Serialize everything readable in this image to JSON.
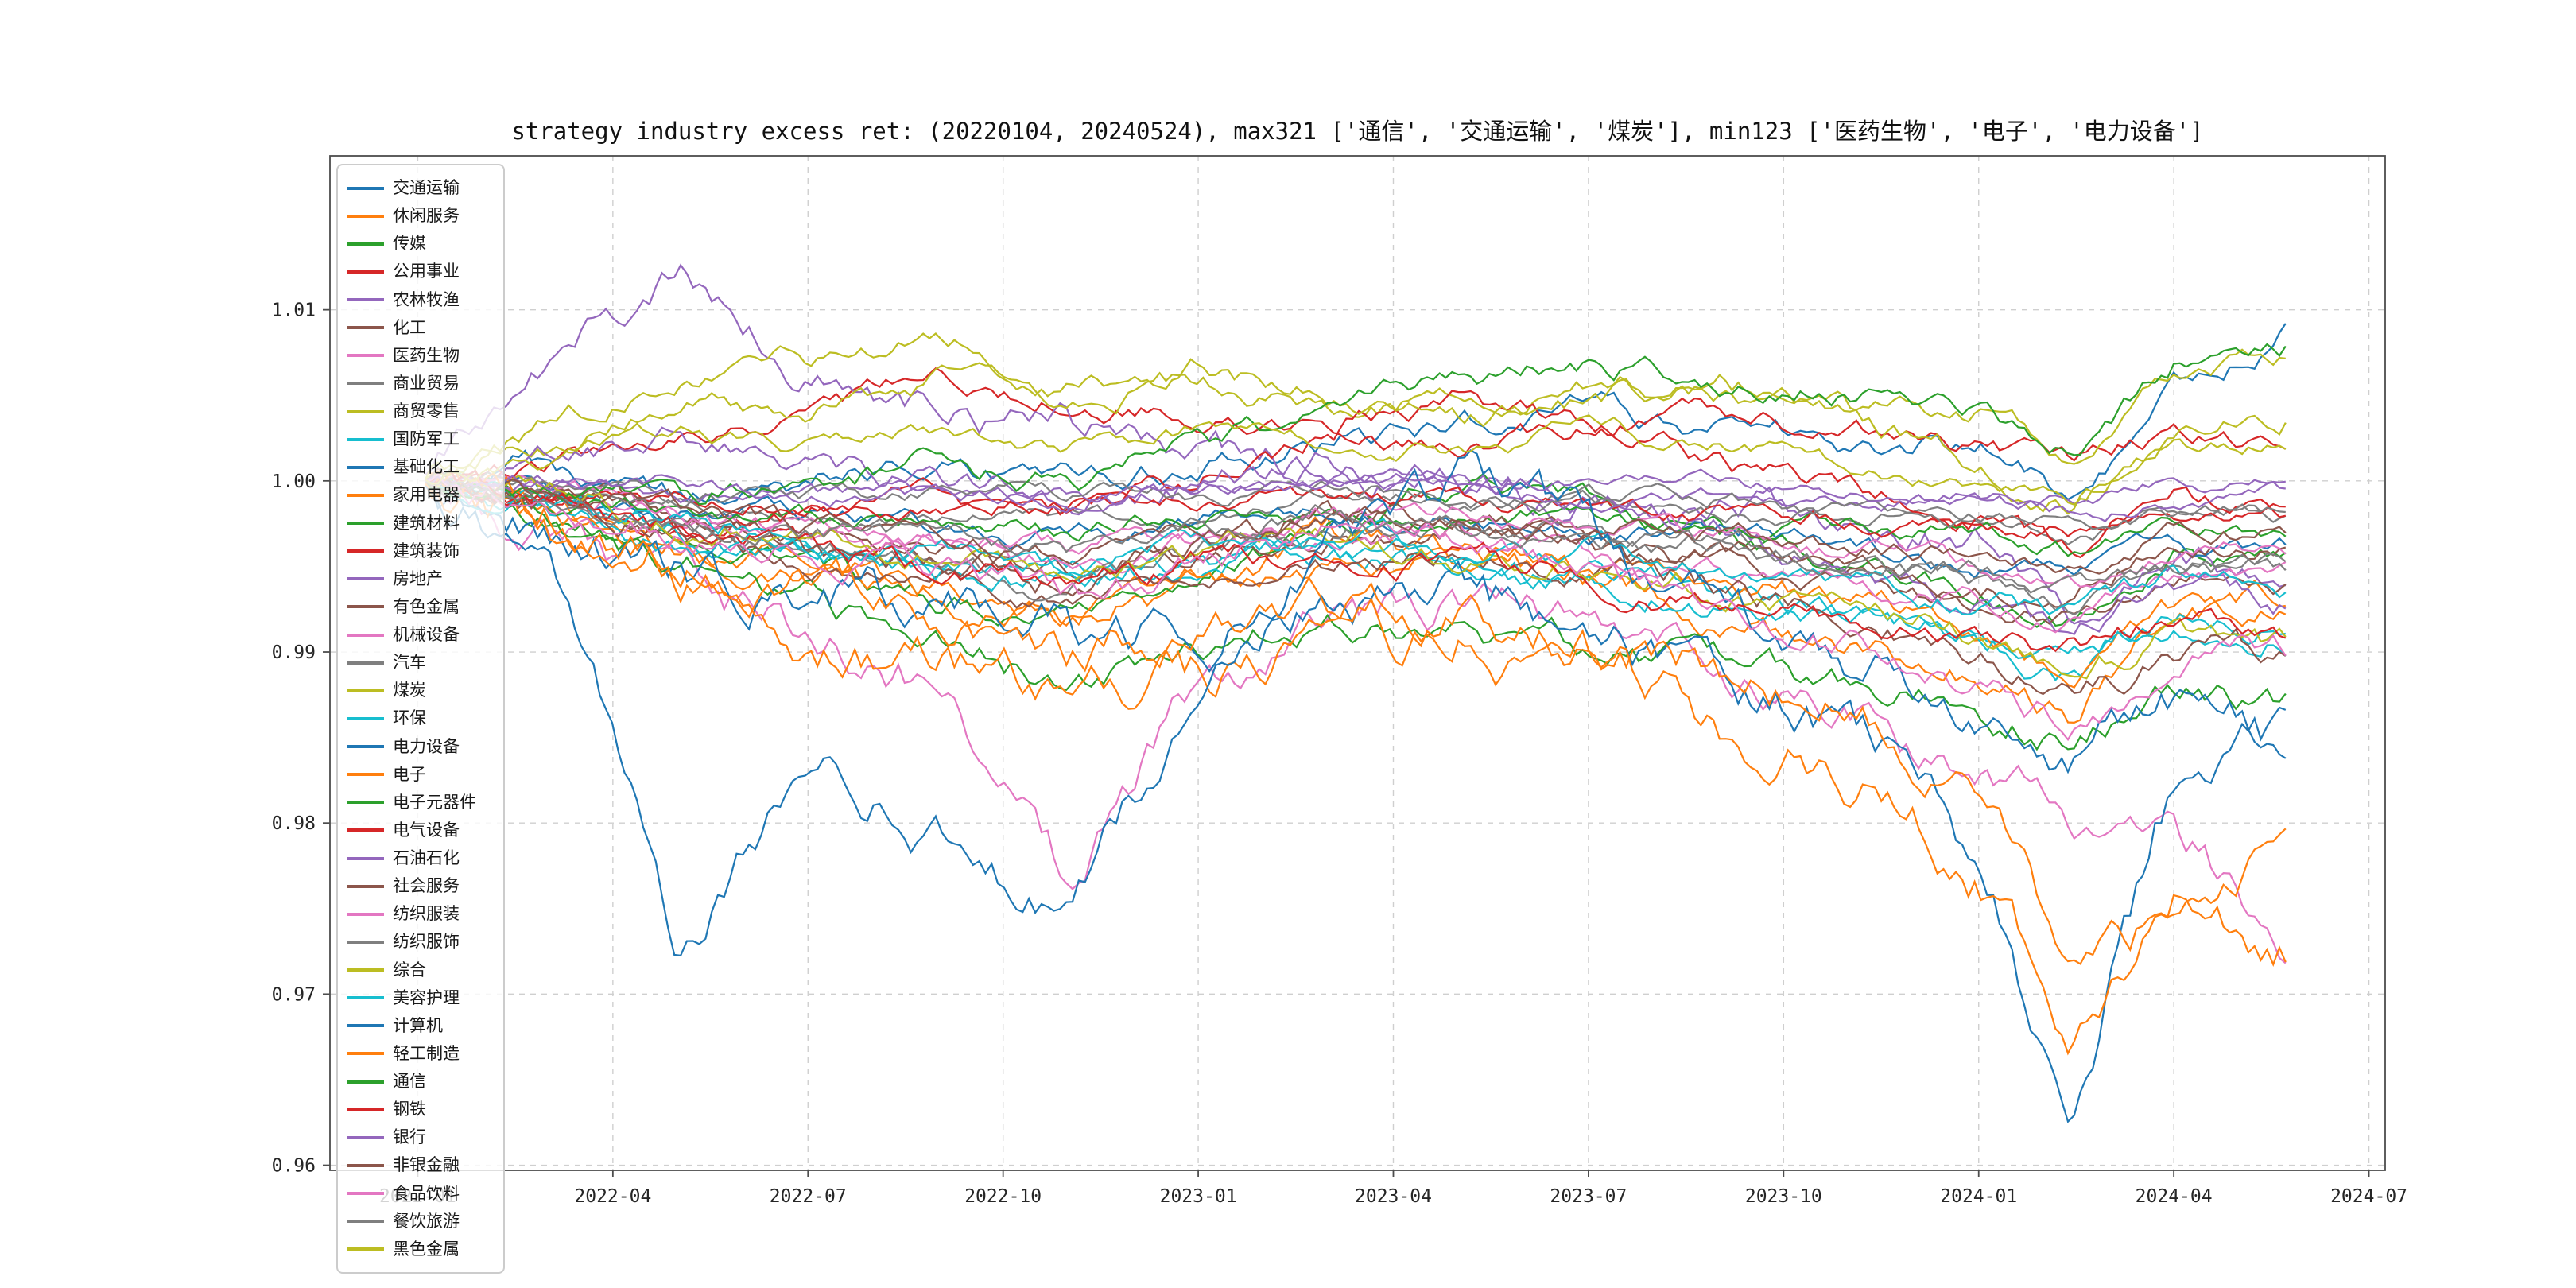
{
  "figure": {
    "title": "strategy industry excess ret: (20220104, 20240524), max321 ['通信', '交通运输', '煤炭'], min123 ['医药生物', '电子', '电力设备']",
    "background": "#ffffff"
  },
  "palette": [
    "#1f77b4",
    "#ff7f0e",
    "#2ca02c",
    "#d62728",
    "#9467bd",
    "#8c564b",
    "#e377c2",
    "#7f7f7f",
    "#bcbd22",
    "#17becf"
  ],
  "axes": {
    "xlim_months": [
      -1.35,
      30.25
    ],
    "ylim": [
      0.9597,
      1.019
    ],
    "x_ticks": [
      {
        "m": 0,
        "label": "2022-01"
      },
      {
        "m": 3,
        "label": "2022-04"
      },
      {
        "m": 6,
        "label": "2022-07"
      },
      {
        "m": 9,
        "label": "2022-10"
      },
      {
        "m": 12,
        "label": "2023-01"
      },
      {
        "m": 15,
        "label": "2023-04"
      },
      {
        "m": 18,
        "label": "2023-07"
      },
      {
        "m": 21,
        "label": "2023-10"
      },
      {
        "m": 24,
        "label": "2024-01"
      },
      {
        "m": 27,
        "label": "2024-04"
      },
      {
        "m": 30,
        "label": "2024-07"
      }
    ],
    "y_ticks": [
      {
        "v": 0.96,
        "label": "0.96"
      },
      {
        "v": 0.97,
        "label": "0.97"
      },
      {
        "v": 0.98,
        "label": "0.98"
      },
      {
        "v": 0.99,
        "label": "0.99"
      },
      {
        "v": 1.0,
        "label": "1.00"
      },
      {
        "v": 1.01,
        "label": "1.01"
      }
    ],
    "grid": {
      "style": "dashed",
      "color": "#cfcfcf"
    }
  },
  "chart_data": {
    "type": "line",
    "title": "strategy industry excess ret: (20220104, 20240524), max321 ['通信', '交通运输', '煤炭'], min123 ['医药生物', '电子', '电力设备']",
    "date_range": [
      "2022-01-04",
      "2024-05-24"
    ],
    "legend_position": "upper left",
    "xlabel": "",
    "ylabel": "",
    "x_anchor_months": [
      0,
      2,
      4,
      6,
      8,
      10,
      12,
      14,
      16,
      18,
      20,
      22,
      24,
      25.4,
      27,
      28.7
    ],
    "max321": [
      "通信",
      "交通运输",
      "煤炭"
    ],
    "min123": [
      "医药生物",
      "电子",
      "电力设备"
    ],
    "series": [
      {
        "name": "交通运输",
        "values": [
          1.0,
          1.001,
          0.999,
          1.0,
          1.001,
          1.0,
          1.001,
          1.002,
          1.003,
          1.004,
          1.003,
          1.002,
          1.002,
          0.999,
          1.005,
          1.009
        ]
      },
      {
        "name": "休闲服务",
        "values": [
          1.0,
          0.998,
          0.996,
          0.995,
          0.994,
          0.992,
          0.994,
          0.996,
          0.995,
          0.994,
          0.992,
          0.99,
          0.989,
          0.986,
          0.992,
          0.993
        ]
      },
      {
        "name": "传媒",
        "values": [
          1.0,
          0.998,
          0.997,
          0.995,
          0.993,
          0.992,
          0.994,
          0.997,
          1.0,
          0.999,
          0.997,
          0.995,
          0.994,
          0.992,
          0.996,
          0.995
        ]
      },
      {
        "name": "公用事业",
        "values": [
          1.0,
          1.001,
          1.002,
          1.004,
          1.006,
          1.005,
          1.004,
          1.003,
          1.002,
          1.003,
          1.004,
          1.003,
          1.002,
          1.001,
          1.003,
          1.002
        ]
      },
      {
        "name": "农林牧渔",
        "values": [
          1.0,
          1.006,
          1.013,
          1.006,
          1.004,
          1.003,
          1.002,
          1.001,
          1.0,
          0.999,
          0.998,
          0.997,
          0.996,
          0.993,
          0.996,
          0.995
        ]
      },
      {
        "name": "化工",
        "values": [
          1.0,
          0.999,
          0.998,
          0.997,
          0.996,
          0.995,
          0.996,
          0.997,
          0.997,
          0.996,
          0.995,
          0.994,
          0.993,
          0.992,
          0.994,
          0.994
        ]
      },
      {
        "name": "医药生物",
        "values": [
          1.0,
          0.997,
          0.994,
          0.991,
          0.988,
          0.976,
          0.988,
          0.992,
          0.993,
          0.992,
          0.99,
          0.986,
          0.983,
          0.979,
          0.98,
          0.973
        ]
      },
      {
        "name": "商业贸易",
        "values": [
          1.0,
          0.999,
          0.999,
          0.998,
          0.998,
          0.998,
          0.998,
          0.999,
          0.999,
          0.999,
          0.998,
          0.998,
          0.998,
          0.997,
          0.998,
          0.998
        ]
      },
      {
        "name": "商贸零售",
        "values": [
          1.0,
          1.002,
          1.005,
          1.004,
          1.006,
          1.005,
          1.006,
          1.004,
          1.005,
          1.006,
          1.005,
          1.004,
          1.004,
          1.001,
          1.006,
          1.007
        ]
      },
      {
        "name": "国防军工",
        "values": [
          1.0,
          0.998,
          0.996,
          0.997,
          0.995,
          0.994,
          0.995,
          0.996,
          0.995,
          0.994,
          0.993,
          0.992,
          0.991,
          0.989,
          0.991,
          0.991
        ]
      },
      {
        "name": "基础化工",
        "values": [
          1.0,
          0.999,
          0.998,
          0.998,
          0.997,
          0.997,
          0.998,
          0.998,
          0.998,
          0.997,
          0.997,
          0.996,
          0.995,
          0.995,
          0.996,
          0.996
        ]
      },
      {
        "name": "家用电器",
        "values": [
          1.0,
          0.998,
          0.996,
          0.994,
          0.993,
          0.992,
          0.994,
          0.995,
          0.996,
          0.995,
          0.994,
          0.993,
          0.991,
          0.989,
          0.992,
          0.993
        ]
      },
      {
        "name": "建筑材料",
        "values": [
          1.0,
          0.998,
          0.995,
          0.993,
          0.99,
          0.988,
          0.99,
          0.992,
          0.991,
          0.99,
          0.989,
          0.988,
          0.987,
          0.985,
          0.988,
          0.987
        ]
      },
      {
        "name": "建筑装饰",
        "values": [
          1.0,
          0.999,
          0.997,
          0.998,
          0.999,
          0.998,
          1.0,
          1.003,
          1.005,
          1.003,
          1.001,
          0.999,
          0.998,
          0.996,
          0.999,
          0.998
        ]
      },
      {
        "name": "房地产",
        "values": [
          1.0,
          1.001,
          1.003,
          1.001,
          1.0,
          0.999,
          1.0,
          1.001,
          1.0,
          0.999,
          0.997,
          0.995,
          0.993,
          0.991,
          0.994,
          0.993
        ]
      },
      {
        "name": "有色金属",
        "values": [
          1.0,
          0.999,
          0.997,
          0.995,
          0.994,
          0.993,
          0.994,
          0.995,
          0.996,
          0.995,
          0.996,
          0.995,
          0.994,
          0.993,
          0.997,
          0.996
        ]
      },
      {
        "name": "机械设备",
        "values": [
          1.0,
          0.999,
          0.998,
          0.997,
          0.996,
          0.995,
          0.996,
          0.997,
          0.997,
          0.996,
          0.995,
          0.994,
          0.993,
          0.992,
          0.994,
          0.994
        ]
      },
      {
        "name": "汽车",
        "values": [
          1.0,
          0.999,
          0.997,
          0.996,
          0.995,
          0.994,
          0.996,
          0.997,
          0.998,
          0.997,
          0.996,
          0.995,
          0.994,
          0.993,
          0.995,
          0.995
        ]
      },
      {
        "name": "煤炭",
        "values": [
          1.0,
          1.003,
          1.006,
          1.007,
          1.008,
          1.006,
          1.007,
          1.005,
          1.004,
          1.005,
          1.006,
          1.004,
          1.001,
          0.999,
          1.003,
          1.004
        ]
      },
      {
        "name": "环保",
        "values": [
          1.0,
          0.999,
          0.997,
          0.996,
          0.995,
          0.994,
          0.995,
          0.996,
          0.995,
          0.994,
          0.993,
          0.992,
          0.991,
          0.99,
          0.992,
          0.992
        ]
      },
      {
        "name": "电力设备",
        "values": [
          1.0,
          0.998,
          0.995,
          0.993,
          0.992,
          0.99,
          0.992,
          0.994,
          0.993,
          0.991,
          0.989,
          0.986,
          0.978,
          0.962,
          0.982,
          0.984
        ]
      },
      {
        "name": "电子",
        "values": [
          1.0,
          0.997,
          0.994,
          0.991,
          0.989,
          0.987,
          0.988,
          0.99,
          0.991,
          0.989,
          0.986,
          0.983,
          0.977,
          0.968,
          0.976,
          0.973
        ]
      },
      {
        "name": "电子元器件",
        "values": [
          1.0,
          0.999,
          0.998,
          0.998,
          0.998,
          0.997,
          0.998,
          0.998,
          0.998,
          0.998,
          0.997,
          0.997,
          0.997,
          0.996,
          0.997,
          0.997
        ]
      },
      {
        "name": "电气设备",
        "values": [
          1.0,
          0.999,
          0.999,
          0.999,
          0.998,
          0.998,
          0.999,
          0.999,
          0.999,
          0.998,
          0.998,
          0.998,
          0.997,
          0.997,
          0.998,
          0.998
        ]
      },
      {
        "name": "石油石化",
        "values": [
          1.0,
          1.0,
          0.999,
          0.999,
          0.999,
          0.999,
          0.999,
          1.0,
          1.0,
          0.999,
          0.999,
          0.999,
          0.999,
          0.998,
          0.999,
          0.999
        ]
      },
      {
        "name": "社会服务",
        "values": [
          1.0,
          0.999,
          0.998,
          0.996,
          0.995,
          0.994,
          0.996,
          0.998,
          0.997,
          0.996,
          0.994,
          0.992,
          0.99,
          0.987,
          0.99,
          0.99
        ]
      },
      {
        "name": "纺织服装",
        "values": [
          1.0,
          0.999,
          0.998,
          0.997,
          0.997,
          0.996,
          0.997,
          0.998,
          0.998,
          0.997,
          0.997,
          0.996,
          0.995,
          0.994,
          0.996,
          0.996
        ]
      },
      {
        "name": "纺织服饰",
        "values": [
          1.0,
          1.0,
          0.999,
          0.999,
          0.999,
          0.999,
          0.999,
          1.0,
          0.999,
          0.999,
          0.999,
          0.998,
          0.998,
          0.997,
          0.998,
          0.998
        ]
      },
      {
        "name": "综合",
        "values": [
          1.0,
          0.999,
          0.998,
          0.997,
          0.996,
          0.995,
          0.996,
          0.997,
          0.996,
          0.995,
          0.994,
          0.992,
          0.991,
          0.989,
          0.991,
          0.99
        ]
      },
      {
        "name": "美容护理",
        "values": [
          1.0,
          0.999,
          0.998,
          0.997,
          0.996,
          0.995,
          0.996,
          0.997,
          0.996,
          0.996,
          0.995,
          0.994,
          0.993,
          0.992,
          0.994,
          0.993
        ]
      },
      {
        "name": "计算机",
        "values": [
          1.0,
          0.995,
          0.972,
          0.984,
          0.98,
          0.974,
          0.988,
          0.995,
          1.0,
          0.997,
          0.992,
          0.989,
          0.987,
          0.984,
          0.987,
          0.985
        ]
      },
      {
        "name": "轻工制造",
        "values": [
          1.0,
          0.998,
          0.996,
          0.994,
          0.992,
          0.99,
          0.992,
          0.993,
          0.992,
          0.991,
          0.989,
          0.987,
          0.983,
          0.972,
          0.975,
          0.978
        ]
      },
      {
        "name": "通信",
        "values": [
          1.0,
          1.0,
          0.999,
          1.0,
          1.001,
          1.0,
          1.002,
          1.004,
          1.006,
          1.007,
          1.006,
          1.005,
          1.004,
          1.002,
          1.007,
          1.008
        ]
      },
      {
        "name": "钢铁",
        "values": [
          1.0,
          0.999,
          0.997,
          0.996,
          0.995,
          0.994,
          0.995,
          0.996,
          0.995,
          0.994,
          0.993,
          0.992,
          0.991,
          0.99,
          0.992,
          0.991
        ]
      },
      {
        "name": "银行",
        "values": [
          1.0,
          1.0,
          1.0,
          0.999,
          0.999,
          0.999,
          1.0,
          1.0,
          1.0,
          1.0,
          1.0,
          0.999,
          0.999,
          0.999,
          1.0,
          1.0
        ]
      },
      {
        "name": "非银金融",
        "values": [
          1.0,
          0.999,
          0.998,
          0.997,
          0.997,
          0.996,
          0.997,
          0.998,
          0.998,
          0.997,
          0.997,
          0.996,
          0.996,
          0.995,
          0.997,
          0.997
        ]
      },
      {
        "name": "食品饮料",
        "values": [
          1.0,
          0.999,
          0.997,
          0.996,
          0.995,
          0.993,
          0.995,
          0.997,
          0.996,
          0.994,
          0.992,
          0.99,
          0.988,
          0.986,
          0.989,
          0.99
        ]
      },
      {
        "name": "餐饮旅游",
        "values": [
          1.0,
          0.999,
          0.998,
          0.997,
          0.997,
          0.996,
          0.997,
          0.998,
          0.997,
          0.997,
          0.996,
          0.995,
          0.995,
          0.994,
          0.995,
          0.995
        ]
      },
      {
        "name": "黑色金属",
        "values": [
          1.0,
          1.001,
          1.003,
          1.002,
          1.003,
          1.002,
          1.003,
          1.002,
          1.002,
          1.003,
          1.002,
          1.001,
          1.0,
          0.999,
          1.002,
          1.002
        ]
      }
    ]
  }
}
